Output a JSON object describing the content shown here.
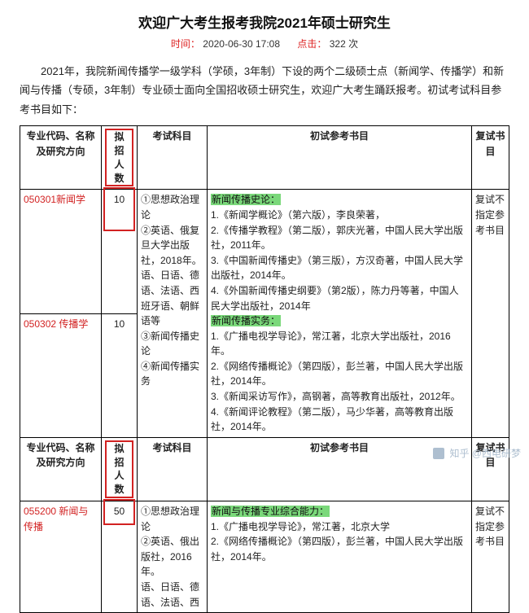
{
  "title": "欢迎广大考生报考我院2021年硕士研究生",
  "meta": {
    "time_label": "时间：",
    "time_value": "2020-06-30 17:08",
    "hits_label": "点击：",
    "hits_value": "322 次"
  },
  "intro": "2021年，我院新闻传播学一级学科（学硕，3年制）下设的两个二级硕士点（新闻学、传播学）和新闻与传播（专硕，3年制）专业硕士面向全国招收硕士研究生，欢迎广大考生踊跃报考。初试考试科目参考书目如下：",
  "headers": {
    "major": "专业代码、名称及研究方向",
    "quota": "拟招人数",
    "subject": "考试科目",
    "ref": "初试参考书目",
    "reexam": "复试书目"
  },
  "section1": {
    "major1": "050301新闻学",
    "quota1": "10",
    "major2": "050302 传播学",
    "quota2": "10",
    "subjects": "①思想政治理论\n②英语、俄复旦大学出版社，2018年。\n语、日语、德语、法语、西班牙语、朝鲜语等\n③新闻传播史论\n④新闻传播实务",
    "ref_block1_title": "新闻传播史论：",
    "ref_block1": "1.《新闻学概论》（第六版），李良荣著，\n2.《传播学教程》（第二版），郭庆光著，中国人民大学出版社，2011年。\n3.《中国新闻传播史》（第三版），方汉奇著，中国人民大学出版社，2014年。\n4.《外国新闻传播史纲要》（第2版），陈力丹等著，中国人民大学出版社，2014年",
    "ref_block2_title": "新闻传播实务：",
    "ref_block2": "1.《广播电视学导论》，常江著，北京大学出版社，2016年。\n2.《网络传播概论》（第四版），彭兰著，中国人民大学出版社，2014年。\n3.《新闻采访写作》，高钢著，高等教育出版社，2012年。\n4.《新闻评论教程》（第二版），马少华著，高等教育出版社，2014年。",
    "reexam": "复试不指定参考书目"
  },
  "section2": {
    "major": "055200 新闻与传播",
    "quota": "50",
    "subjects": "①思想政治理论\n②英语、俄出版社，2016年。\n语、日语、德语、法语、西",
    "ref_title": "新闻与传播专业综合能力：",
    "ref": "1.《广播电视学导论》，常江著，北京大学\n2.《网络传播概论》（第四版），彭兰著，中国人民大学出版社，2014年。",
    "reexam": "复试不指定参考书目"
  },
  "watermark": "知乎 @西电研梦"
}
